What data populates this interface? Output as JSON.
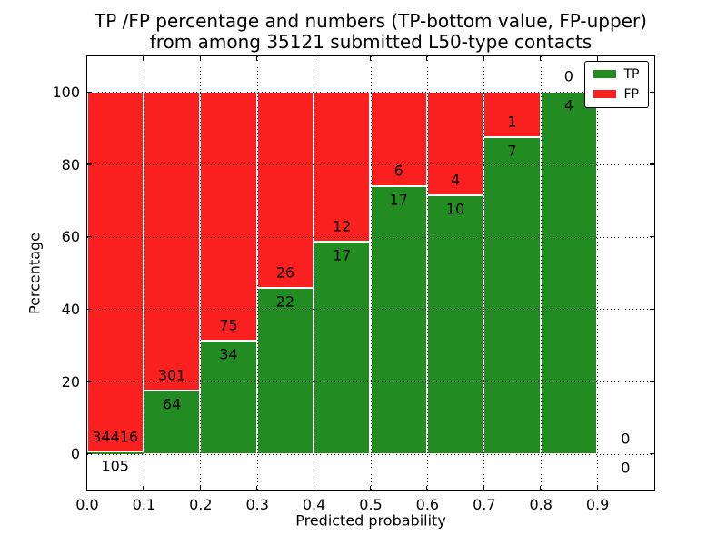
{
  "title": {
    "line1": "TP /FP percentage and numbers (TP-bottom value, FP-upper)",
    "line2": "from among 35121 submitted L50-type contacts"
  },
  "chart_data": {
    "type": "bar",
    "stacked": true,
    "normalized": "each bar totals 100%, split into TP (bottom, green) and FP (top, red); annotations show raw counts (FP above boundary, TP below)",
    "title": "TP /FP percentage and numbers (TP-bottom value, FP-upper) from among 35121 submitted L50-type contacts",
    "xlabel": "Predicted probability",
    "ylabel": "Percentage",
    "xlim": [
      0.0,
      1.0
    ],
    "ylim": [
      -10,
      110
    ],
    "grid": "dotted black at all ticks",
    "total_contacts": 35121,
    "xticks": [
      {
        "v": 0.0,
        "label": "0.0"
      },
      {
        "v": 0.1,
        "label": "0.1"
      },
      {
        "v": 0.2,
        "label": "0.2"
      },
      {
        "v": 0.3,
        "label": "0.3"
      },
      {
        "v": 0.4,
        "label": "0.4"
      },
      {
        "v": 0.5,
        "label": "0.5"
      },
      {
        "v": 0.6,
        "label": "0.6"
      },
      {
        "v": 0.7,
        "label": "0.7"
      },
      {
        "v": 0.8,
        "label": "0.8"
      },
      {
        "v": 0.9,
        "label": "0.9"
      }
    ],
    "yticks": [
      {
        "v": 0,
        "label": "0"
      },
      {
        "v": 20,
        "label": "20"
      },
      {
        "v": 40,
        "label": "40"
      },
      {
        "v": 60,
        "label": "60"
      },
      {
        "v": 80,
        "label": "80"
      },
      {
        "v": 100,
        "label": "100"
      }
    ],
    "bins": [
      {
        "x_start": 0.0,
        "x_end": 0.1,
        "tp": 105,
        "fp": 34416,
        "tp_percent": 0.3
      },
      {
        "x_start": 0.1,
        "x_end": 0.2,
        "tp": 64,
        "fp": 301,
        "tp_percent": 17.5
      },
      {
        "x_start": 0.2,
        "x_end": 0.3,
        "tp": 34,
        "fp": 75,
        "tp_percent": 31.2
      },
      {
        "x_start": 0.3,
        "x_end": 0.4,
        "tp": 22,
        "fp": 26,
        "tp_percent": 45.8
      },
      {
        "x_start": 0.4,
        "x_end": 0.5,
        "tp": 17,
        "fp": 12,
        "tp_percent": 58.6
      },
      {
        "x_start": 0.5,
        "x_end": 0.6,
        "tp": 17,
        "fp": 6,
        "tp_percent": 73.9
      },
      {
        "x_start": 0.6,
        "x_end": 0.7,
        "tp": 10,
        "fp": 4,
        "tp_percent": 71.4
      },
      {
        "x_start": 0.7,
        "x_end": 0.8,
        "tp": 7,
        "fp": 1,
        "tp_percent": 87.5
      },
      {
        "x_start": 0.8,
        "x_end": 0.9,
        "tp": 4,
        "fp": 0,
        "tp_percent": 100.0
      },
      {
        "x_start": 0.9,
        "x_end": 1.0,
        "tp": 0,
        "fp": 0,
        "tp_percent": null
      }
    ],
    "legend": {
      "position": "upper right",
      "entries": [
        {
          "label": "TP",
          "color_key": "tp"
        },
        {
          "label": "FP",
          "color_key": "fp"
        }
      ]
    },
    "colors": {
      "tp": "#228b22",
      "fp": "#fb2020",
      "bar_edge": "#ffffff",
      "grid": "#000000",
      "text": "#000000",
      "background": "#ffffff"
    }
  }
}
